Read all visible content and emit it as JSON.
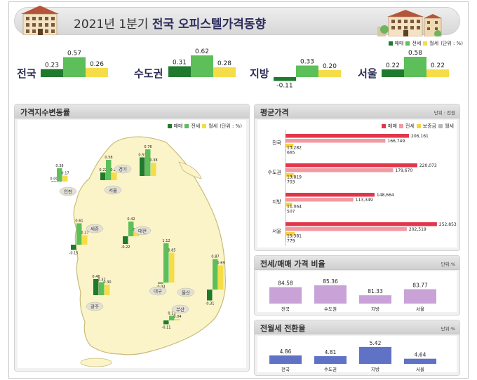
{
  "title": {
    "year": "2021년 1분기",
    "main": "전국 오피스텔가격동향"
  },
  "colors": {
    "sale": "#1f7a2e",
    "jeonse": "#5cbf5a",
    "wolse": "#f5dd4a",
    "avg_sale": "#e2364b",
    "avg_jeonse": "#f29aa2",
    "deposit": "#f5d340",
    "avg_wolse": "#b8b8b8",
    "ratio_bar": "#c9a2d8",
    "conv_bar": "#5f72c6",
    "map_fill": "#fbf4c8",
    "map_stroke": "#c7bc7a"
  },
  "top_legend": {
    "items": [
      "매매",
      "전세",
      "월세"
    ],
    "unit": "(단위 : %)"
  },
  "top_chart": [
    {
      "region": "전국",
      "values": [
        0.23,
        0.57,
        0.26
      ]
    },
    {
      "region": "수도권",
      "values": [
        0.31,
        0.62,
        0.28
      ]
    },
    {
      "region": "지방",
      "values": [
        -0.11,
        0.33,
        0.2
      ]
    },
    {
      "region": "서울",
      "values": [
        0.22,
        0.58,
        0.22
      ]
    }
  ],
  "map_panel": {
    "title": "가격지수변동률",
    "legend": [
      "매매",
      "전세",
      "월세"
    ],
    "unit": "(단위 : %)",
    "groups": [
      {
        "region": "인천",
        "values": [
          0.0,
          0.38,
          0.17
        ]
      },
      {
        "region": "서울",
        "values": [
          0.22,
          0.58,
          0.22
        ]
      },
      {
        "region": "경기",
        "values": [
          0.53,
          0.76,
          0.38
        ]
      },
      {
        "region": "세종",
        "values": [
          -0.15,
          0.61,
          0.27
        ]
      },
      {
        "region": "대전",
        "values": [
          -0.22,
          0.42,
          0.12
        ]
      },
      {
        "region": "대구",
        "values": [
          -0.03,
          1.12,
          0.85
        ]
      },
      {
        "region": "울산",
        "values": [
          -0.31,
          0.87,
          0.69
        ]
      },
      {
        "region": "광주",
        "values": [
          0.46,
          0.37,
          0.3
        ]
      },
      {
        "region": "부산",
        "values": [
          -0.11,
          0.13,
          0.04
        ]
      }
    ]
  },
  "avg_panel": {
    "title": "평균가격",
    "unit": "단위 : 천원",
    "legend": [
      "매매",
      "전세",
      "보증금",
      "월세"
    ],
    "rows": [
      {
        "region": "전국",
        "values": [
          206161,
          166749,
          13282,
          665
        ]
      },
      {
        "region": "수도권",
        "values": [
          220073,
          179670,
          13819,
          703
        ]
      },
      {
        "region": "지방",
        "values": [
          148664,
          113349,
          11064,
          507
        ]
      },
      {
        "region": "서울",
        "values": [
          252853,
          202519,
          15381,
          779
        ]
      }
    ]
  },
  "ratio_panel": {
    "title": "전세/매매 가격 비율",
    "unit": "단위:%",
    "categories": [
      "전국",
      "수도권",
      "지방",
      "서울"
    ],
    "values": [
      84.58,
      85.36,
      81.33,
      83.77
    ]
  },
  "conv_panel": {
    "title": "전월세 전환율",
    "unit": "단위:%",
    "categories": [
      "전국",
      "수도권",
      "지방",
      "서울"
    ],
    "values": [
      4.86,
      4.81,
      5.42,
      4.64
    ]
  },
  "chart_data": [
    {
      "type": "bar",
      "categories": [
        "전국",
        "수도권",
        "지방",
        "서울"
      ],
      "series": [
        {
          "name": "매매",
          "values": [
            0.23,
            0.31,
            -0.11,
            0.22
          ]
        },
        {
          "name": "전세",
          "values": [
            0.57,
            0.62,
            0.33,
            0.58
          ]
        },
        {
          "name": "월세",
          "values": [
            0.26,
            0.28,
            0.2,
            0.22
          ]
        }
      ],
      "ylabel": "(단위 : %)"
    },
    {
      "type": "bar",
      "title": "가격지수변동률",
      "categories": [
        "인천",
        "서울",
        "경기",
        "세종",
        "대전",
        "대구",
        "울산",
        "광주",
        "부산"
      ],
      "series": [
        {
          "name": "매매",
          "values": [
            0.0,
            0.22,
            0.53,
            -0.15,
            -0.22,
            -0.03,
            -0.31,
            0.46,
            -0.11
          ]
        },
        {
          "name": "전세",
          "values": [
            0.38,
            0.58,
            0.76,
            0.61,
            0.42,
            1.12,
            0.87,
            0.37,
            0.13
          ]
        },
        {
          "name": "월세",
          "values": [
            0.17,
            0.22,
            0.38,
            0.27,
            0.12,
            0.85,
            0.69,
            0.3,
            0.04
          ]
        }
      ]
    },
    {
      "type": "bar",
      "title": "평균가격",
      "categories": [
        "전국",
        "수도권",
        "지방",
        "서울"
      ],
      "series": [
        {
          "name": "매매",
          "values": [
            206161,
            220073,
            148664,
            252853
          ]
        },
        {
          "name": "전세",
          "values": [
            166749,
            179670,
            113349,
            202519
          ]
        },
        {
          "name": "보증금",
          "values": [
            13282,
            13819,
            11064,
            15381
          ]
        },
        {
          "name": "월세",
          "values": [
            665,
            703,
            507,
            779
          ]
        }
      ]
    },
    {
      "type": "bar",
      "title": "전세/매매 가격 비율",
      "categories": [
        "전국",
        "수도권",
        "지방",
        "서울"
      ],
      "values": [
        84.58,
        85.36,
        81.33,
        83.77
      ]
    },
    {
      "type": "bar",
      "title": "전월세 전환율",
      "categories": [
        "전국",
        "수도권",
        "지방",
        "서울"
      ],
      "values": [
        4.86,
        4.81,
        5.42,
        4.64
      ]
    }
  ]
}
